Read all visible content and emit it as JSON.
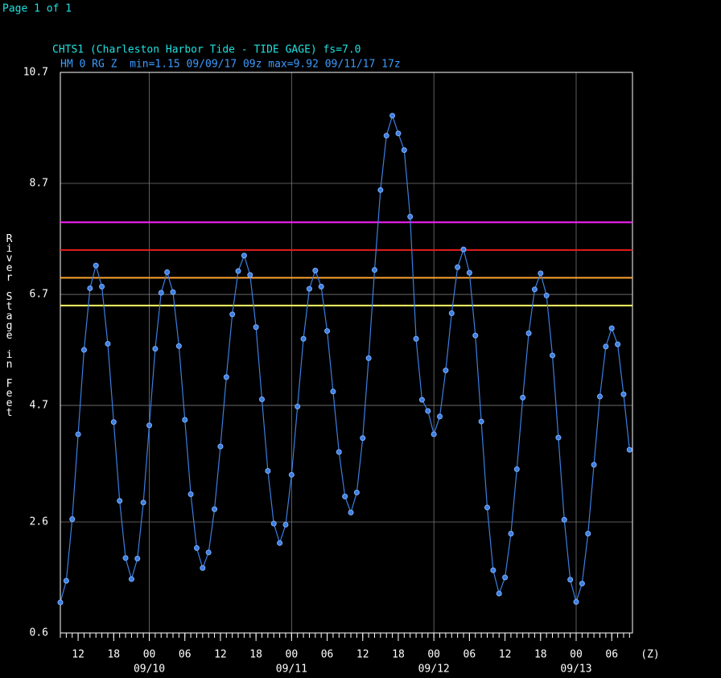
{
  "page_label": "Page 1 of 1",
  "chart_data": {
    "type": "line",
    "title": "CHTS1 (Charleston Harbor Tide - TIDE GAGE) fs=7.0",
    "subtitle": "HM 0 RG Z  min=1.15 09/09/17 09z max=9.92 09/11/17 17z",
    "y_label": "River Stage in Feet",
    "x_unit": "(Z)",
    "xlim": [
      -15,
      81.5
    ],
    "ylim": [
      0.6,
      10.7
    ],
    "yticks": [
      0.6,
      2.6,
      4.7,
      6.7,
      8.7,
      10.7
    ],
    "xticks": [
      {
        "value": -12,
        "label": "12"
      },
      {
        "value": -6,
        "label": "18"
      },
      {
        "value": 0,
        "label": "00"
      },
      {
        "value": 6,
        "label": "06"
      },
      {
        "value": 12,
        "label": "12"
      },
      {
        "value": 18,
        "label": "18"
      },
      {
        "value": 24,
        "label": "00"
      },
      {
        "value": 30,
        "label": "06"
      },
      {
        "value": 36,
        "label": "12"
      },
      {
        "value": 42,
        "label": "18"
      },
      {
        "value": 48,
        "label": "00"
      },
      {
        "value": 54,
        "label": "06"
      },
      {
        "value": 60,
        "label": "12"
      },
      {
        "value": 66,
        "label": "18"
      },
      {
        "value": 72,
        "label": "00"
      },
      {
        "value": 78,
        "label": "06"
      }
    ],
    "date_labels": [
      {
        "value": 0,
        "label": "09/10"
      },
      {
        "value": 24,
        "label": "09/11"
      },
      {
        "value": 48,
        "label": "09/12"
      },
      {
        "value": 72,
        "label": "09/13"
      }
    ],
    "grid": true,
    "thresholds": [
      {
        "value": 8.0,
        "color": "#ff22ff"
      },
      {
        "value": 7.5,
        "color": "#e81c1c"
      },
      {
        "value": 7.0,
        "color": "#ffa530"
      },
      {
        "value": 6.5,
        "color": "#ffff66"
      }
    ],
    "series": [
      {
        "color": "#3c7ee0",
        "x": [
          -15,
          -14,
          -13,
          -12,
          -11,
          -10,
          -9,
          -8,
          -7,
          -6,
          -5,
          -4,
          -3,
          -2,
          -1,
          0,
          1,
          2,
          3,
          4,
          5,
          6,
          7,
          8,
          9,
          10,
          11,
          12,
          13,
          14,
          15,
          16,
          17,
          18,
          19,
          20,
          21,
          22,
          23,
          24,
          25,
          26,
          27,
          28,
          29,
          30,
          31,
          32,
          33,
          34,
          35,
          36,
          37,
          38,
          39,
          40,
          41,
          42,
          43,
          44,
          45,
          46,
          47,
          48,
          49,
          50,
          51,
          52,
          53,
          54,
          55,
          56,
          57,
          58,
          59,
          60,
          61,
          62,
          63,
          64,
          65,
          66,
          67,
          68,
          69,
          70,
          71,
          72,
          73,
          74,
          75,
          76,
          77,
          78,
          79,
          80,
          81
        ],
        "values": [
          1.15,
          1.54,
          2.65,
          4.18,
          5.7,
          6.81,
          7.22,
          6.84,
          5.81,
          4.4,
          2.98,
          1.95,
          1.57,
          1.94,
          2.95,
          4.34,
          5.72,
          6.73,
          7.1,
          6.74,
          5.77,
          4.44,
          3.1,
          2.13,
          1.77,
          2.05,
          2.83,
          3.96,
          5.21,
          6.34,
          7.12,
          7.4,
          7.05,
          6.11,
          4.81,
          3.52,
          2.57,
          2.22,
          2.55,
          3.45,
          4.68,
          5.9,
          6.8,
          7.13,
          6.84,
          6.04,
          4.95,
          3.86,
          3.06,
          2.77,
          3.13,
          4.11,
          5.55,
          7.14,
          8.58,
          9.56,
          9.92,
          9.6,
          9.3,
          8.1,
          5.9,
          4.8,
          4.6,
          4.18,
          4.5,
          5.33,
          6.36,
          7.19,
          7.51,
          7.09,
          5.96,
          4.41,
          2.86,
          1.73,
          1.31,
          1.6,
          2.39,
          3.55,
          4.84,
          6.0,
          6.79,
          7.08,
          6.68,
          5.6,
          4.12,
          2.64,
          1.56,
          1.16,
          1.49,
          2.39,
          3.63,
          4.86,
          5.76,
          6.09,
          5.8,
          4.9,
          3.9
        ]
      }
    ]
  }
}
